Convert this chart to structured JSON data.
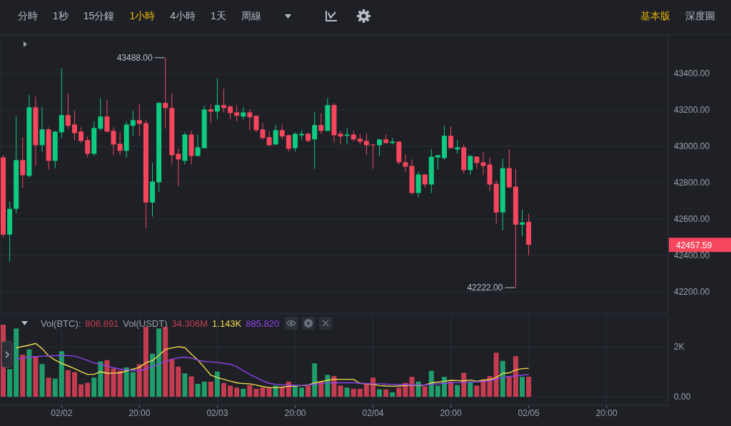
{
  "chart_data": [
    {
      "type": "candlestick",
      "categories": [
        null,
        null,
        null,
        null,
        null,
        null,
        null,
        null,
        null,
        null,
        null,
        null,
        null,
        null,
        null,
        null,
        null,
        null,
        null,
        null,
        null,
        null,
        null,
        null,
        null,
        null,
        null,
        null,
        null,
        null,
        null,
        null,
        null,
        null,
        null,
        null,
        null,
        null,
        null,
        null,
        null,
        null,
        null,
        null,
        null,
        null,
        null,
        null,
        null,
        null,
        null,
        null,
        null,
        null,
        null,
        null,
        null,
        null,
        null,
        null,
        null,
        null,
        null,
        null,
        null,
        null,
        null,
        null,
        null,
        null,
        null,
        null,
        null,
        null,
        null,
        null,
        null,
        null,
        null,
        null,
        null,
        null,
        null,
        null,
        null,
        null,
        null,
        null,
        null,
        null,
        null,
        null,
        null,
        null,
        null,
        null,
        null,
        null,
        null,
        null,
        null,
        null,
        null
      ],
      "ohlc": [
        [
          42939,
          42950,
          42500,
          42514
        ],
        [
          42514,
          42695,
          42365,
          42656
        ],
        [
          42656,
          43164,
          42632,
          42924
        ],
        [
          42924,
          43050,
          42770,
          42841
        ],
        [
          42837,
          43282,
          42829,
          43215
        ],
        [
          43215,
          43274,
          42892,
          43006
        ],
        [
          43006,
          43215,
          42967,
          43093
        ],
        [
          43093,
          43105,
          42872,
          42920
        ],
        [
          42920,
          43085,
          42880,
          43081
        ],
        [
          43077,
          43428,
          43046,
          43172
        ],
        [
          43172,
          43290,
          43097,
          43113
        ],
        [
          43120,
          43195,
          43034,
          43073
        ],
        [
          43081,
          43105,
          43018,
          43030
        ],
        [
          43034,
          43054,
          42939,
          42959
        ],
        [
          42959,
          43136,
          42947,
          43101
        ],
        [
          43097,
          43266,
          43085,
          43164
        ],
        [
          43164,
          43254,
          43077,
          43081
        ],
        [
          43085,
          43105,
          42951,
          43010
        ],
        [
          43014,
          43077,
          42951,
          42975
        ],
        [
          42975,
          43136,
          42939,
          43120
        ],
        [
          43113,
          43195,
          43058,
          43144
        ],
        [
          43144,
          43235,
          43054,
          43124
        ],
        [
          43128,
          43144,
          42550,
          42691
        ],
        [
          42691,
          42908,
          42613,
          42806
        ],
        [
          42802,
          43243,
          42750,
          43239
        ],
        [
          43239,
          43488,
          43097,
          43211
        ],
        [
          43211,
          43290,
          42900,
          42951
        ],
        [
          42959,
          42987,
          42782,
          42928
        ],
        [
          42920,
          43077,
          42900,
          43065
        ],
        [
          43065,
          43085,
          42900,
          42947
        ],
        [
          42947,
          43065,
          42947,
          42994
        ],
        [
          42990,
          43223,
          42990,
          43203
        ],
        [
          43203,
          43231,
          43128,
          43191
        ],
        [
          43191,
          43376,
          43148,
          43227
        ],
        [
          43227,
          43317,
          43187,
          43211
        ],
        [
          43219,
          43227,
          43148,
          43183
        ],
        [
          43187,
          43227,
          43136,
          43168
        ],
        [
          43164,
          43215,
          43148,
          43187
        ],
        [
          43187,
          43203,
          43089,
          43160
        ],
        [
          43168,
          43170,
          43077,
          43089
        ],
        [
          43093,
          43128,
          43038,
          43046
        ],
        [
          43050,
          43085,
          43002,
          43006
        ],
        [
          43010,
          43117,
          43010,
          43089
        ],
        [
          43089,
          43120,
          43038,
          43054
        ],
        [
          43061,
          43065,
          42971,
          42987
        ],
        [
          42990,
          43077,
          42971,
          43069
        ],
        [
          43061,
          43089,
          43038,
          43069
        ],
        [
          43069,
          43077,
          43022,
          43030
        ],
        [
          43038,
          43187,
          42876,
          43117
        ],
        [
          43117,
          43183,
          43069,
          43085
        ],
        [
          43085,
          43266,
          43085,
          43227
        ],
        [
          43227,
          43239,
          43022,
          43061
        ],
        [
          43069,
          43085,
          43010,
          43054
        ],
        [
          43058,
          43101,
          43010,
          43065
        ],
        [
          43065,
          43085,
          43026,
          43038
        ],
        [
          43042,
          43069,
          43010,
          43026
        ],
        [
          43030,
          43069,
          42951,
          43006
        ],
        [
          43010,
          43012,
          42876,
          43006
        ],
        [
          43006,
          43040,
          42947,
          43038
        ],
        [
          43038,
          43065,
          43016,
          43018
        ],
        [
          43018,
          43046,
          43010,
          43026
        ],
        [
          43026,
          43028,
          42900,
          42912
        ],
        [
          42912,
          42955,
          42861,
          42888
        ],
        [
          42892,
          42928,
          42735,
          42743
        ],
        [
          42743,
          42861,
          42719,
          42845
        ],
        [
          42845,
          42848,
          42774,
          42790
        ],
        [
          42790,
          42983,
          42743,
          42943
        ],
        [
          42939,
          42953,
          42872,
          42951
        ],
        [
          42935,
          43113,
          42927,
          43058
        ],
        [
          43058,
          43109,
          42988,
          42990
        ],
        [
          42983,
          43034,
          42959,
          42994
        ],
        [
          42994,
          43010,
          42849,
          42869
        ],
        [
          42869,
          42951,
          42841,
          42947
        ],
        [
          42943,
          42945,
          42876,
          42908
        ],
        [
          42912,
          42967,
          42841,
          42892
        ],
        [
          42900,
          42939,
          42754,
          42790
        ],
        [
          42794,
          42813,
          42573,
          42636
        ],
        [
          42636,
          42932,
          42538,
          42880
        ],
        [
          42880,
          42983,
          42770,
          42774
        ],
        [
          42778,
          42876,
          42222,
          42569
        ],
        [
          42569,
          42652,
          42506,
          42581
        ],
        [
          42585,
          42628,
          42400,
          42457.59
        ],
        null,
        null,
        null,
        null,
        null,
        null,
        null,
        null,
        null,
        null,
        null,
        null,
        null,
        null,
        null,
        null,
        null,
        null,
        null,
        null,
        null
      ],
      "colors": [
        "#f6465d",
        "#0ecb81",
        "#0ecb81",
        "#f6465d",
        "#0ecb81",
        "#f6465d",
        "#0ecb81",
        "#f6465d",
        "#0ecb81",
        "#0ecb81",
        "#f6465d",
        "#f6465d",
        "#f6465d",
        "#f6465d",
        "#0ecb81",
        "#0ecb81",
        "#f6465d",
        "#f6465d",
        "#f6465d",
        "#0ecb81",
        "#0ecb81",
        "#f6465d",
        "#f6465d",
        "#0ecb81",
        "#0ecb81",
        "#f6465d",
        "#f6465d",
        "#f6465d",
        "#0ecb81",
        "#f6465d",
        "#0ecb81",
        "#0ecb81",
        "#f6465d",
        "#0ecb81",
        "#f6465d",
        "#f6465d",
        "#f6465d",
        "#0ecb81",
        "#f6465d",
        "#f6465d",
        "#f6465d",
        "#f6465d",
        "#0ecb81",
        "#f6465d",
        "#f6465d",
        "#0ecb81",
        "#0ecb81",
        "#f6465d",
        "#0ecb81",
        "#f6465d",
        "#0ecb81",
        "#f6465d",
        "#f6465d",
        "#0ecb81",
        "#f6465d",
        "#f6465d",
        "#f6465d",
        "#f6465d",
        "#0ecb81",
        "#f6465d",
        "#0ecb81",
        "#f6465d",
        "#f6465d",
        "#f6465d",
        "#0ecb81",
        "#f6465d",
        "#0ecb81",
        "#0ecb81",
        "#0ecb81",
        "#f6465d",
        "#0ecb81",
        "#f6465d",
        "#0ecb81",
        "#f6465d",
        "#f6465d",
        "#f6465d",
        "#f6465d",
        "#0ecb81",
        "#f6465d",
        "#f6465d",
        "#0ecb81",
        "#f6465d",
        null,
        null,
        null,
        null,
        null,
        null,
        null,
        null,
        null,
        null,
        null,
        null,
        null,
        null,
        null,
        null,
        null,
        null,
        null,
        null,
        null
      ],
      "ylim": [
        42085,
        43613
      ],
      "yticks": [
        {
          "value": 42200,
          "label": "42200.00"
        },
        {
          "value": 42400,
          "label": "42400.00"
        },
        {
          "value": 42600,
          "label": "42600.00"
        },
        {
          "value": 42800,
          "label": "42800.00"
        },
        {
          "value": 43000,
          "label": "43000.00"
        },
        {
          "value": 43200,
          "label": "43200.00"
        },
        {
          "value": 43400,
          "label": "43400.00"
        }
      ],
      "grid": true,
      "annotations": [
        "分時",
        "1秒",
        "15分鐘",
        "1小時",
        "4小時",
        "1天",
        "周線",
        "基本版",
        "深度圖",
        "43488.00",
        "42222.00",
        "42457.59"
      ]
    },
    {
      "type": "bar",
      "categories": [
        null,
        null,
        null,
        null,
        null,
        null,
        null,
        null,
        null,
        "02/02",
        null,
        null,
        null,
        null,
        null,
        null,
        null,
        null,
        null,
        null,
        null,
        "20:00",
        null,
        null,
        null,
        null,
        null,
        null,
        null,
        null,
        null,
        null,
        null,
        "02/03",
        null,
        null,
        null,
        null,
        null,
        null,
        null,
        null,
        null,
        null,
        null,
        "20:00",
        null,
        null,
        null,
        null,
        null,
        null,
        null,
        null,
        null,
        null,
        null,
        "02/04",
        null,
        null,
        null,
        null,
        null,
        null,
        null,
        null,
        null,
        null,
        null,
        "20:00",
        null,
        null,
        null,
        null,
        null,
        null,
        null,
        null,
        null,
        null,
        null,
        "02/05",
        null,
        null,
        null,
        null,
        null,
        null,
        null,
        null,
        null,
        null,
        null,
        "20:00",
        null,
        null,
        null,
        null,
        null,
        null,
        null,
        null,
        null
      ],
      "series": [
        {
          "type": "bar",
          "values": [
            2890,
            1110,
            2740,
            1690,
            1900,
            1630,
            1310,
            770,
            730,
            1830,
            1070,
            990,
            500,
            560,
            770,
            1420,
            1470,
            1130,
            1060,
            1180,
            990,
            1310,
            2800,
            1730,
            2740,
            2800,
            1520,
            1210,
            940,
            820,
            520,
            610,
            610,
            1010,
            560,
            450,
            370,
            320,
            470,
            320,
            370,
            370,
            450,
            390,
            610,
            450,
            370,
            450,
            1340,
            610,
            880,
            830,
            450,
            370,
            320,
            320,
            520,
            770,
            300,
            300,
            180,
            370,
            560,
            800,
            610,
            420,
            1040,
            450,
            800,
            610,
            470,
            960,
            610,
            450,
            700,
            830,
            1770,
            1440,
            830,
            1630,
            800,
            806.891,
            null,
            null,
            null,
            null,
            null,
            null,
            null,
            null,
            null,
            null,
            null,
            null,
            null,
            null,
            null,
            null,
            null,
            null,
            null,
            null,
            null
          ],
          "colors": [
            "#c43c50",
            "#1f9d6b",
            "#1f9d6b",
            "#c43c50",
            "#1f9d6b",
            "#c43c50",
            "#1f9d6b",
            "#c43c50",
            "#1f9d6b",
            "#1f9d6b",
            "#c43c50",
            "#c43c50",
            "#c43c50",
            "#c43c50",
            "#1f9d6b",
            "#1f9d6b",
            "#c43c50",
            "#c43c50",
            "#c43c50",
            "#1f9d6b",
            "#1f9d6b",
            "#c43c50",
            "#c43c50",
            "#1f9d6b",
            "#1f9d6b",
            "#c43c50",
            "#c43c50",
            "#c43c50",
            "#1f9d6b",
            "#c43c50",
            "#1f9d6b",
            "#1f9d6b",
            "#c43c50",
            "#1f9d6b",
            "#c43c50",
            "#c43c50",
            "#c43c50",
            "#1f9d6b",
            "#c43c50",
            "#c43c50",
            "#c43c50",
            "#c43c50",
            "#1f9d6b",
            "#c43c50",
            "#c43c50",
            "#1f9d6b",
            "#1f9d6b",
            "#c43c50",
            "#1f9d6b",
            "#c43c50",
            "#1f9d6b",
            "#c43c50",
            "#c43c50",
            "#1f9d6b",
            "#c43c50",
            "#c43c50",
            "#c43c50",
            "#c43c50",
            "#1f9d6b",
            "#c43c50",
            "#1f9d6b",
            "#c43c50",
            "#c43c50",
            "#c43c50",
            "#1f9d6b",
            "#c43c50",
            "#1f9d6b",
            "#1f9d6b",
            "#1f9d6b",
            "#c43c50",
            "#1f9d6b",
            "#c43c50",
            "#1f9d6b",
            "#c43c50",
            "#c43c50",
            "#c43c50",
            "#c43c50",
            "#1f9d6b",
            "#c43c50",
            "#c43c50",
            "#1f9d6b",
            "#c43c50",
            null,
            null,
            null,
            null,
            null,
            null,
            null,
            null,
            null,
            null,
            null,
            null,
            null,
            null,
            null,
            null,
            null,
            null,
            null,
            null,
            null
          ]
        },
        {
          "type": "line",
          "color": "#f0dc4e",
          "values": [
            null,
            null,
            1960,
            2020,
            2070,
            2140,
            1930,
            1640,
            1470,
            1340,
            1240,
            1130,
            1010,
            900,
            900,
            1010,
            940,
            950,
            960,
            1040,
            1110,
            1180,
            1370,
            1450,
            1660,
            1900,
            1960,
            2010,
            1970,
            1710,
            1470,
            1180,
            870,
            770,
            700,
            630,
            560,
            530,
            520,
            470,
            410,
            370,
            370,
            390,
            420,
            430,
            450,
            470,
            560,
            610,
            660,
            700,
            700,
            700,
            700,
            540,
            520,
            500,
            450,
            430,
            420,
            430,
            450,
            470,
            450,
            470,
            560,
            590,
            620,
            660,
            650,
            640,
            670,
            620,
            670,
            690,
            770,
            940,
            960,
            1080,
            1130,
            1143,
            null,
            null,
            null,
            null,
            null,
            null,
            null,
            null,
            null,
            null,
            null,
            null,
            null,
            null,
            null,
            null,
            null,
            null,
            null,
            null,
            null
          ]
        },
        {
          "type": "line",
          "color": "#8d43eb",
          "values": [
            null,
            null,
            1520,
            1550,
            1590,
            1610,
            1630,
            1640,
            1650,
            1660,
            1650,
            1630,
            1550,
            1460,
            1360,
            1300,
            1230,
            1160,
            1120,
            1080,
            1060,
            1040,
            1120,
            1210,
            1310,
            1420,
            1500,
            1560,
            1590,
            1550,
            1470,
            1420,
            1400,
            1380,
            1340,
            1310,
            1210,
            1040,
            900,
            770,
            640,
            540,
            500,
            480,
            470,
            460,
            450,
            470,
            510,
            530,
            550,
            560,
            560,
            560,
            560,
            540,
            530,
            520,
            520,
            510,
            500,
            490,
            490,
            480,
            470,
            480,
            500,
            520,
            540,
            560,
            570,
            580,
            590,
            600,
            610,
            640,
            710,
            770,
            810,
            840,
            870,
            885.82,
            null,
            null,
            null,
            null,
            null,
            null,
            null,
            null,
            null,
            null,
            null,
            null,
            null,
            null,
            null,
            null,
            null,
            null,
            null,
            null,
            null
          ]
        }
      ],
      "ylim": [
        -340,
        3320
      ],
      "yticks": [
        {
          "value": 0,
          "label": "0.00"
        },
        {
          "value": 2000,
          "label": "2K"
        }
      ],
      "grid": true,
      "annotations": [
        "Vol(BTC):",
        "806.891",
        "Vol(USDT)",
        "34.306M",
        "1.143K",
        "885.820"
      ]
    }
  ]
}
